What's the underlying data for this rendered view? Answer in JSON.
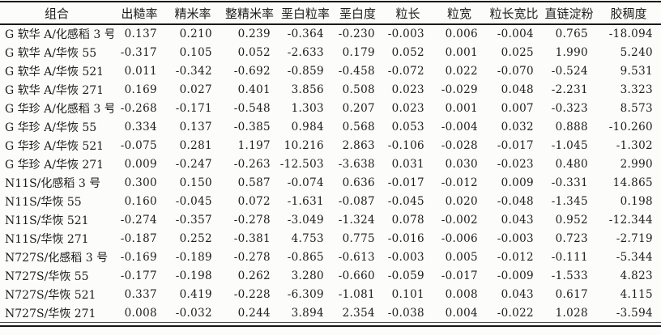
{
  "page": {
    "background": "#fcfcfa",
    "ink": "#1c1c1c",
    "rule_color": "#1a1a1a"
  },
  "table": {
    "columns": [
      "组合",
      "出糙率",
      "精米率",
      "整精米率",
      "垩白粒率",
      "垩白度",
      "粒长",
      "粒宽",
      "粒长宽比",
      "直链淀粉",
      "胶稠度"
    ],
    "rows": [
      {
        "combination": "G 软华 A/化感稻 3 号",
        "values": [
          "0.137",
          "0.210",
          "0.239",
          "-0.364",
          "-0.230",
          "-0.003",
          "0.006",
          "-0.004",
          "0.765",
          "-18.094"
        ]
      },
      {
        "combination": "G 软华 A/华恢 55",
        "values": [
          "-0.317",
          "0.105",
          "0.052",
          "-2.633",
          "0.179",
          "0.052",
          "0.001",
          "0.025",
          "1.990",
          "5.240"
        ]
      },
      {
        "combination": "G 软华 A/华恢 521",
        "values": [
          "0.011",
          "-0.342",
          "-0.692",
          "-0.859",
          "-0.458",
          "-0.072",
          "0.022",
          "-0.070",
          "-0.524",
          "9.531"
        ]
      },
      {
        "combination": "G 软华 A/华恢 271",
        "values": [
          "0.169",
          "0.027",
          "0.401",
          "3.856",
          "0.508",
          "0.023",
          "-0.029",
          "0.048",
          "-2.231",
          "3.323"
        ]
      },
      {
        "combination": "G 华珍 A/化感稻 3 号",
        "values": [
          "-0.268",
          "-0.171",
          "-0.548",
          "1.303",
          "0.207",
          "0.023",
          "0.001",
          "0.007",
          "-0.323",
          "8.573"
        ]
      },
      {
        "combination": "G 华珍 A/华恢 55",
        "values": [
          "0.334",
          "0.137",
          "-0.385",
          "0.984",
          "0.568",
          "0.053",
          "-0.004",
          "0.032",
          "0.888",
          "-10.260"
        ]
      },
      {
        "combination": "G 华珍 A/华恢 521",
        "values": [
          "-0.075",
          "0.281",
          "1.197",
          "10.216",
          "2.863",
          "-0.106",
          "-0.028",
          "-0.017",
          "-1.045",
          "-1.302"
        ]
      },
      {
        "combination": "G 华珍 A/华恢 271",
        "values": [
          "0.009",
          "-0.247",
          "-0.263",
          "-12.503",
          "-3.638",
          "0.031",
          "0.030",
          "-0.023",
          "0.480",
          "2.990"
        ]
      },
      {
        "combination": "N11S/化感稻 3 号",
        "values": [
          "0.300",
          "0.150",
          "0.587",
          "-0.074",
          "0.636",
          "-0.017",
          "-0.012",
          "0.009",
          "-0.331",
          "14.865"
        ]
      },
      {
        "combination": "N11S/华恢 55",
        "values": [
          "0.160",
          "-0.045",
          "0.072",
          "-1.631",
          "-0.087",
          "-0.045",
          "0.020",
          "-0.048",
          "-1.345",
          "0.198"
        ]
      },
      {
        "combination": "N11S/华恢 521",
        "values": [
          "-0.274",
          "-0.357",
          "-0.278",
          "-3.049",
          "-1.324",
          "0.078",
          "-0.002",
          "0.043",
          "0.952",
          "-12.344"
        ]
      },
      {
        "combination": "N11S/华恢 271",
        "values": [
          "-0.187",
          "0.252",
          "-0.381",
          "4.753",
          "0.775",
          "-0.016",
          "-0.006",
          "-0.003",
          "0.723",
          "-2.719"
        ]
      },
      {
        "combination": "N727S/化感稻 3 号",
        "values": [
          "-0.169",
          "-0.189",
          "-0.278",
          "-0.865",
          "-0.613",
          "-0.003",
          "0.005",
          "-0.012",
          "-0.111",
          "-5.344"
        ]
      },
      {
        "combination": "N727S/华恢 55",
        "values": [
          "-0.177",
          "-0.198",
          "0.262",
          "3.280",
          "-0.660",
          "-0.059",
          "-0.017",
          "-0.009",
          "-1.533",
          "4.823"
        ]
      },
      {
        "combination": "N727S/华恢 521",
        "values": [
          "0.337",
          "0.419",
          "-0.228",
          "-6.309",
          "-1.081",
          "0.101",
          "0.008",
          "0.043",
          "0.617",
          "4.115"
        ]
      },
      {
        "combination": "N727S/华恢 271",
        "values": [
          "0.008",
          "-0.032",
          "0.244",
          "3.894",
          "2.354",
          "-0.038",
          "0.004",
          "-0.022",
          "1.028",
          "-3.594"
        ]
      }
    ]
  }
}
